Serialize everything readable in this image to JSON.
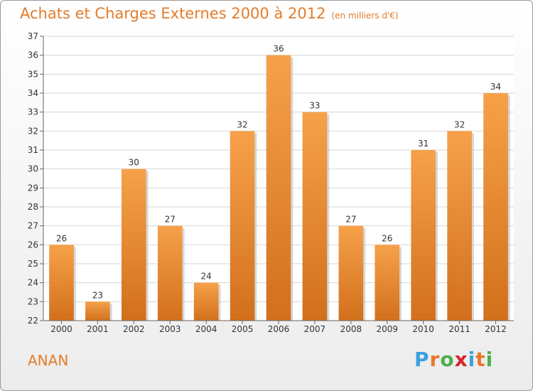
{
  "title": "Achats et Charges Externes 2000 à 2012",
  "subtitle": "(en milliers d'€)",
  "location": "ANAN",
  "logo": {
    "text": "Proxiti",
    "letter_colors": [
      "#3aa0dc",
      "#e8792b",
      "#4cae4c",
      "#d8232a",
      "#3aa0dc",
      "#e8792b",
      "#4cae4c"
    ]
  },
  "colors": {
    "bar_light": "#f6a14a",
    "bar_dark": "#d2701c",
    "accent": "#e47c2a"
  },
  "chart_data": {
    "type": "bar",
    "categories": [
      "2000",
      "2001",
      "2002",
      "2003",
      "2004",
      "2005",
      "2006",
      "2007",
      "2008",
      "2009",
      "2010",
      "2011",
      "2012"
    ],
    "values": [
      26,
      23,
      30,
      27,
      24,
      32,
      36,
      33,
      27,
      26,
      31,
      32,
      34
    ],
    "yticks": [
      22,
      23,
      24,
      25,
      26,
      27,
      28,
      29,
      30,
      31,
      32,
      33,
      34,
      35,
      36,
      37
    ],
    "ylim": [
      22,
      37
    ],
    "grid": true,
    "data_labels": true
  }
}
